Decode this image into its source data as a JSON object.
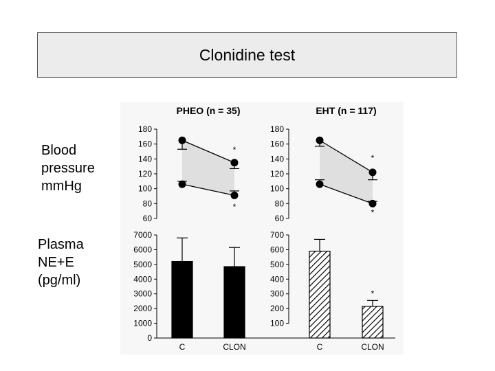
{
  "slide": {
    "title": "Clonidine test",
    "bp_label": "Blood\npressure\nmmHg",
    "ne_label": "Plasma\nNE+E\n(pg/ml)"
  },
  "colors": {
    "panel_bg": "#f7f7f7",
    "band_fill": "#cfcfcf",
    "pheo_bar": "#000000",
    "eht_bar_hatch": "#000000"
  },
  "chart_data": [
    {
      "type": "line",
      "panel": "PHEO blood pressure",
      "title": "PHEO (n = 35)",
      "categories": [
        "C",
        "CLON"
      ],
      "series": [
        {
          "values": [
            165,
            135
          ],
          "error": [
            12,
            8
          ]
        },
        {
          "values": [
            106,
            91
          ],
          "error": [
            4,
            6
          ]
        }
      ],
      "ylim": [
        60,
        180
      ],
      "yticks": [
        "180",
        "160",
        "140",
        "120",
        "100",
        "80",
        "60"
      ],
      "significance": [
        "*",
        "*"
      ],
      "shaded_band": true
    },
    {
      "type": "line",
      "panel": "EHT blood pressure",
      "title": "EHT (n = 117)",
      "categories": [
        "C",
        "CLON"
      ],
      "series": [
        {
          "values": [
            165,
            122
          ],
          "error": [
            8,
            10
          ]
        },
        {
          "values": [
            106,
            80
          ],
          "error": [
            6,
            3
          ]
        }
      ],
      "ylim": [
        60,
        180
      ],
      "yticks": [
        "180",
        "160",
        "140",
        "120",
        "100",
        "80",
        "60"
      ],
      "significance": [
        "*",
        "*"
      ],
      "shaded_band": true
    },
    {
      "type": "bar",
      "panel": "PHEO plasma NE+E",
      "categories": [
        "C",
        "CLON"
      ],
      "values": [
        5200,
        4850
      ],
      "error": [
        1600,
        1300
      ],
      "ylim": [
        0,
        7000
      ],
      "yticks": [
        "7000",
        "6000",
        "5000",
        "4000",
        "3000",
        "2000",
        "1000",
        "0"
      ],
      "fill": "solid"
    },
    {
      "type": "bar",
      "panel": "EHT plasma NE+E",
      "categories": [
        "C",
        "CLON"
      ],
      "values": [
        590,
        215
      ],
      "error": [
        80,
        40
      ],
      "ylim": [
        0,
        700
      ],
      "yticks": [
        "700",
        "600",
        "500",
        "400",
        "300",
        "200",
        "100"
      ],
      "fill": "hatched",
      "significance": [
        "",
        "*"
      ]
    }
  ]
}
